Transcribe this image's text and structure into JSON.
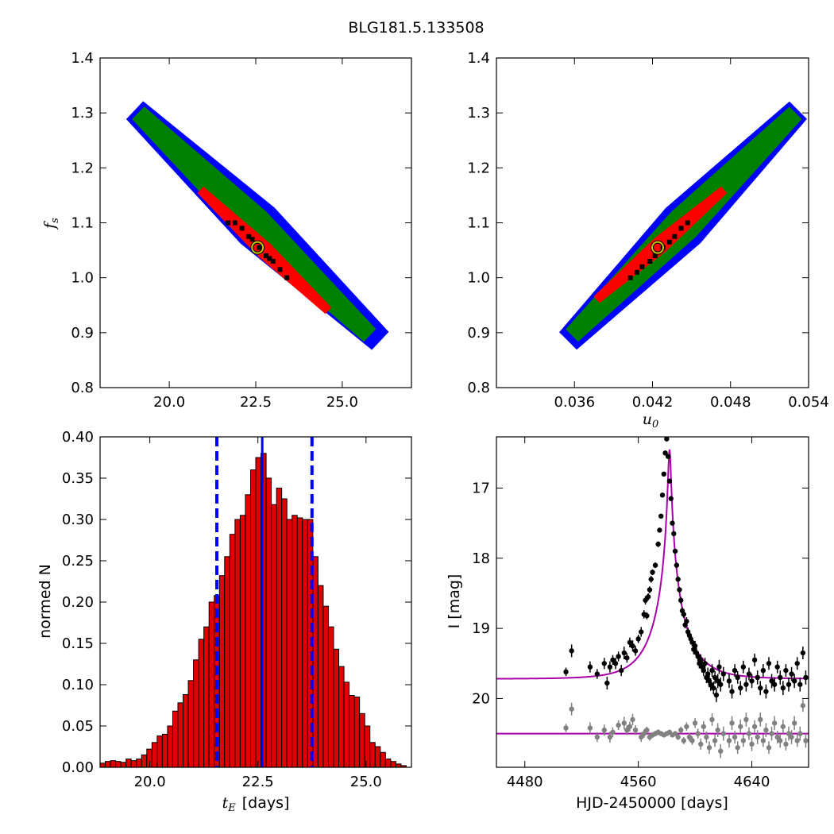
{
  "figure": {
    "suptitle": "BLG181.5.133508",
    "colors": {
      "outer_contour": "#0000ff",
      "mid_contour": "#008000",
      "inner_contour": "#ff0000",
      "core_points": "#000000",
      "best_fit_marker": "#c8c800",
      "histogram_bars": "#e00000",
      "median_line": "#0000ff",
      "model_curve": "#aa00aa",
      "data_points": "#000000",
      "residual_points": "#808080"
    }
  },
  "chart_data": [
    {
      "id": "tE_vs_fs",
      "type": "scatter",
      "xlabel": "",
      "ylabel": "f_s",
      "xlim": [
        18.0,
        27.0
      ],
      "ylim": [
        0.8,
        1.4
      ],
      "xticks": [
        "20.0",
        "22.5",
        "25.0"
      ],
      "xtick_values": [
        20.0,
        22.5,
        25.0
      ],
      "yticks": [
        "0.8",
        "0.9",
        "1.0",
        "1.1",
        "1.2",
        "1.3",
        "1.4"
      ],
      "ytick_values": [
        0.8,
        0.9,
        1.0,
        1.1,
        1.2,
        1.3,
        1.4
      ],
      "regions": {
        "outer": {
          "from": [
            19.0,
            1.305
          ],
          "to": [
            26.1,
            0.885
          ],
          "halfwidth": 0.045
        },
        "mid": {
          "from": [
            19.1,
            1.3
          ],
          "to": [
            25.8,
            0.895
          ],
          "halfwidth": 0.032
        },
        "inner": {
          "from": [
            20.9,
            1.16
          ],
          "to": [
            24.6,
            0.94
          ],
          "halfwidth": 0.016
        },
        "core": [
          [
            21.7,
            1.1
          ],
          [
            21.9,
            1.1
          ],
          [
            22.1,
            1.09
          ],
          [
            22.3,
            1.075
          ],
          [
            22.4,
            1.07
          ],
          [
            22.6,
            1.055
          ],
          [
            22.8,
            1.04
          ],
          [
            22.9,
            1.035
          ],
          [
            23.0,
            1.03
          ],
          [
            23.2,
            1.015
          ],
          [
            23.4,
            1.0
          ]
        ]
      },
      "best_fit": {
        "x": 22.55,
        "y": 1.055
      }
    },
    {
      "id": "u0_vs_fs",
      "type": "scatter",
      "xlabel": "u_0",
      "ylabel": "",
      "xlim": [
        0.03,
        0.054
      ],
      "ylim": [
        0.8,
        1.4
      ],
      "xticks": [
        "0.036",
        "0.042",
        "0.048",
        "0.054"
      ],
      "xtick_values": [
        0.036,
        0.042,
        0.048,
        0.054
      ],
      "yticks": [
        "0.8",
        "0.9",
        "1.0",
        "1.1",
        "1.2",
        "1.3",
        "1.4"
      ],
      "ytick_values": [
        0.8,
        0.9,
        1.0,
        1.1,
        1.2,
        1.3,
        1.4
      ],
      "regions": {
        "outer": {
          "from": [
            0.0355,
            0.885
          ],
          "to": [
            0.0532,
            1.305
          ],
          "halfwidth": 0.045
        },
        "mid": {
          "from": [
            0.0358,
            0.895
          ],
          "to": [
            0.053,
            1.3
          ],
          "halfwidth": 0.032
        },
        "inner": {
          "from": [
            0.0377,
            0.96
          ],
          "to": [
            0.0475,
            1.16
          ],
          "halfwidth": 0.016
        },
        "core": [
          [
            0.0403,
            1.0
          ],
          [
            0.0408,
            1.01
          ],
          [
            0.0412,
            1.02
          ],
          [
            0.0418,
            1.03
          ],
          [
            0.0422,
            1.04
          ],
          [
            0.0428,
            1.055
          ],
          [
            0.0433,
            1.065
          ],
          [
            0.0437,
            1.075
          ],
          [
            0.0442,
            1.09
          ],
          [
            0.0447,
            1.1
          ]
        ]
      },
      "best_fit": {
        "x": 0.0424,
        "y": 1.055
      }
    },
    {
      "id": "tE_histogram",
      "type": "bar",
      "xlabel_math": "t_E",
      "xlabel_text": "[days]",
      "ylabel": "normed N",
      "xlim": [
        18.85,
        26.05
      ],
      "ylim": [
        0.0,
        0.4
      ],
      "xticks": [
        "20.0",
        "22.5",
        "25.0"
      ],
      "xtick_values": [
        20.0,
        22.5,
        25.0
      ],
      "yticks": [
        "0.00",
        "0.05",
        "0.10",
        "0.15",
        "0.20",
        "0.25",
        "0.30",
        "0.35",
        "0.40"
      ],
      "ytick_values": [
        0.0,
        0.05,
        0.1,
        0.15,
        0.2,
        0.25,
        0.3,
        0.35,
        0.4
      ],
      "bin_start": 18.85,
      "bin_width": 0.12,
      "values": [
        0.005,
        0.007,
        0.008,
        0.007,
        0.006,
        0.01,
        0.008,
        0.01,
        0.015,
        0.022,
        0.03,
        0.038,
        0.04,
        0.05,
        0.068,
        0.078,
        0.088,
        0.105,
        0.13,
        0.155,
        0.17,
        0.2,
        0.208,
        0.232,
        0.255,
        0.282,
        0.3,
        0.305,
        0.33,
        0.36,
        0.375,
        0.38,
        0.35,
        0.318,
        0.338,
        0.325,
        0.3,
        0.305,
        0.302,
        0.3,
        0.3,
        0.255,
        0.22,
        0.195,
        0.17,
        0.143,
        0.122,
        0.103,
        0.087,
        0.085,
        0.065,
        0.05,
        0.03,
        0.025,
        0.018,
        0.01,
        0.007,
        0.004,
        0.002
      ],
      "median": 22.6,
      "lower": 21.55,
      "upper": 23.75
    },
    {
      "id": "light_curve",
      "type": "scatter",
      "xlabel": "HJD-2450000 [days]",
      "ylabel": "I [mag]",
      "xlim": [
        4460,
        4680
      ],
      "ylim": [
        20.98,
        16.27
      ],
      "ylim_note": "inverted magnitude axis",
      "xticks": [
        "4480",
        "4560",
        "4640"
      ],
      "xtick_values": [
        4480,
        4560,
        4640
      ],
      "yticks": [
        "17",
        "18",
        "19",
        "20"
      ],
      "ytick_values": [
        17,
        18,
        19,
        20
      ],
      "model": {
        "t0": 4582,
        "baseline": 19.72,
        "peak": 16.45,
        "tE": 22.6,
        "u0": 0.042
      },
      "residual_baseline": 20.5,
      "data": [
        [
          4509,
          19.62,
          0.06
        ],
        [
          4513,
          19.32,
          0.09
        ],
        [
          4526,
          19.55,
          0.08
        ],
        [
          4531,
          19.65,
          0.07
        ],
        [
          4536,
          19.5,
          0.08
        ],
        [
          4538,
          19.78,
          0.09
        ],
        [
          4540,
          19.55,
          0.08
        ],
        [
          4542,
          19.45,
          0.07
        ],
        [
          4544,
          19.5,
          0.08
        ],
        [
          4546,
          19.4,
          0.07
        ],
        [
          4548,
          19.6,
          0.08
        ],
        [
          4550,
          19.35,
          0.09
        ],
        [
          4552,
          19.42,
          0.07
        ],
        [
          4554,
          19.2,
          0.07
        ],
        [
          4556,
          19.25,
          0.08
        ],
        [
          4558,
          19.32,
          0.07
        ],
        [
          4560,
          19.15,
          0.06
        ],
        [
          4562,
          19.05,
          0.07
        ],
        [
          4564,
          18.8,
          0.06
        ],
        [
          4565,
          18.6,
          0.06
        ],
        [
          4566,
          18.82,
          0.05
        ],
        [
          4567,
          18.55,
          0.05
        ],
        [
          4568,
          18.45,
          0.05
        ],
        [
          4569,
          18.3,
          0.05
        ],
        [
          4570,
          18.2,
          0.04
        ],
        [
          4572,
          18.1,
          0.04
        ],
        [
          4574,
          17.8,
          0.04
        ],
        [
          4575,
          17.6,
          0.03
        ],
        [
          4576,
          17.4,
          0.03
        ],
        [
          4577,
          17.1,
          0.03
        ],
        [
          4578,
          16.8,
          0.02
        ],
        [
          4579,
          16.5,
          0.02
        ],
        [
          4580,
          16.3,
          0.02
        ],
        [
          4581,
          16.55,
          0.02
        ],
        [
          4582,
          16.9,
          0.02
        ],
        [
          4583,
          17.15,
          0.03
        ],
        [
          4584,
          17.5,
          0.03
        ],
        [
          4585,
          17.65,
          0.03
        ],
        [
          4586,
          17.9,
          0.03
        ],
        [
          4587,
          18.1,
          0.04
        ],
        [
          4588,
          18.3,
          0.04
        ],
        [
          4589,
          18.45,
          0.04
        ],
        [
          4590,
          18.6,
          0.05
        ],
        [
          4591,
          18.75,
          0.05
        ],
        [
          4592,
          18.8,
          0.05
        ],
        [
          4593,
          18.95,
          0.05
        ],
        [
          4594,
          18.9,
          0.06
        ],
        [
          4595,
          19.05,
          0.06
        ],
        [
          4596,
          19.1,
          0.06
        ],
        [
          4597,
          19.15,
          0.06
        ],
        [
          4598,
          19.2,
          0.06
        ],
        [
          4599,
          19.3,
          0.07
        ],
        [
          4600,
          19.25,
          0.07
        ],
        [
          4601,
          19.35,
          0.07
        ],
        [
          4602,
          19.4,
          0.07
        ],
        [
          4603,
          19.5,
          0.07
        ],
        [
          4604,
          19.45,
          0.08
        ],
        [
          4605,
          19.55,
          0.08
        ],
        [
          4606,
          19.6,
          0.08
        ],
        [
          4607,
          19.5,
          0.08
        ],
        [
          4608,
          19.7,
          0.08
        ],
        [
          4609,
          19.65,
          0.09
        ],
        [
          4610,
          19.75,
          0.09
        ],
        [
          4611,
          19.8,
          0.09
        ],
        [
          4612,
          19.6,
          0.09
        ],
        [
          4613,
          19.85,
          0.09
        ],
        [
          4614,
          19.7,
          0.09
        ],
        [
          4615,
          19.95,
          0.1
        ],
        [
          4616,
          19.75,
          0.1
        ],
        [
          4617,
          19.55,
          0.1
        ],
        [
          4618,
          19.8,
          0.1
        ],
        [
          4620,
          19.65,
          0.1
        ],
        [
          4624,
          19.75,
          0.1
        ],
        [
          4626,
          19.9,
          0.1
        ],
        [
          4628,
          19.6,
          0.09
        ],
        [
          4630,
          19.7,
          0.09
        ],
        [
          4632,
          19.85,
          0.1
        ],
        [
          4634,
          19.55,
          0.09
        ],
        [
          4636,
          19.8,
          0.1
        ],
        [
          4638,
          19.65,
          0.09
        ],
        [
          4640,
          19.75,
          0.1
        ],
        [
          4642,
          19.45,
          0.09
        ],
        [
          4644,
          19.7,
          0.1
        ],
        [
          4646,
          19.85,
          0.1
        ],
        [
          4648,
          19.6,
          0.09
        ],
        [
          4650,
          19.9,
          0.1
        ],
        [
          4652,
          19.5,
          0.09
        ],
        [
          4654,
          19.75,
          0.1
        ],
        [
          4656,
          19.8,
          0.1
        ],
        [
          4658,
          19.55,
          0.09
        ],
        [
          4660,
          19.7,
          0.1
        ],
        [
          4662,
          19.85,
          0.1
        ],
        [
          4664,
          19.6,
          0.09
        ],
        [
          4666,
          19.8,
          0.1
        ],
        [
          4668,
          19.65,
          0.1
        ],
        [
          4670,
          19.75,
          0.1
        ],
        [
          4672,
          19.5,
          0.09
        ],
        [
          4674,
          19.8,
          0.1
        ],
        [
          4676,
          19.35,
          0.09
        ],
        [
          4678,
          19.7,
          0.1
        ]
      ],
      "residuals": [
        [
          4509,
          20.42,
          0.06
        ],
        [
          4513,
          20.15,
          0.09
        ],
        [
          4526,
          20.42,
          0.08
        ],
        [
          4531,
          20.55,
          0.07
        ],
        [
          4536,
          20.45,
          0.08
        ],
        [
          4540,
          20.55,
          0.08
        ],
        [
          4542,
          20.48,
          0.07
        ],
        [
          4546,
          20.38,
          0.07
        ],
        [
          4550,
          20.35,
          0.09
        ],
        [
          4552,
          20.45,
          0.07
        ],
        [
          4554,
          20.4,
          0.07
        ],
        [
          4556,
          20.3,
          0.08
        ],
        [
          4558,
          20.45,
          0.07
        ],
        [
          4562,
          20.55,
          0.07
        ],
        [
          4564,
          20.5,
          0.06
        ],
        [
          4566,
          20.45,
          0.05
        ],
        [
          4568,
          20.55,
          0.05
        ],
        [
          4570,
          20.52,
          0.04
        ],
        [
          4572,
          20.5,
          0.04
        ],
        [
          4574,
          20.48,
          0.04
        ],
        [
          4576,
          20.5,
          0.03
        ],
        [
          4578,
          20.52,
          0.02
        ],
        [
          4580,
          20.5,
          0.02
        ],
        [
          4582,
          20.48,
          0.02
        ],
        [
          4584,
          20.52,
          0.03
        ],
        [
          4586,
          20.5,
          0.03
        ],
        [
          4588,
          20.55,
          0.04
        ],
        [
          4590,
          20.45,
          0.05
        ],
        [
          4592,
          20.6,
          0.05
        ],
        [
          4594,
          20.4,
          0.06
        ],
        [
          4596,
          20.55,
          0.06
        ],
        [
          4598,
          20.6,
          0.06
        ],
        [
          4600,
          20.35,
          0.07
        ],
        [
          4602,
          20.5,
          0.07
        ],
        [
          4604,
          20.65,
          0.08
        ],
        [
          4606,
          20.4,
          0.08
        ],
        [
          4608,
          20.55,
          0.08
        ],
        [
          4610,
          20.7,
          0.09
        ],
        [
          4612,
          20.3,
          0.09
        ],
        [
          4614,
          20.6,
          0.09
        ],
        [
          4616,
          20.45,
          0.1
        ],
        [
          4618,
          20.75,
          0.1
        ],
        [
          4620,
          20.5,
          0.1
        ],
        [
          4624,
          20.6,
          0.1
        ],
        [
          4626,
          20.35,
          0.1
        ],
        [
          4628,
          20.55,
          0.09
        ],
        [
          4630,
          20.7,
          0.09
        ],
        [
          4632,
          20.4,
          0.1
        ],
        [
          4634,
          20.6,
          0.09
        ],
        [
          4636,
          20.3,
          0.1
        ],
        [
          4638,
          20.5,
          0.09
        ],
        [
          4640,
          20.65,
          0.1
        ],
        [
          4642,
          20.4,
          0.09
        ],
        [
          4644,
          20.55,
          0.1
        ],
        [
          4646,
          20.3,
          0.1
        ],
        [
          4648,
          20.6,
          0.09
        ],
        [
          4650,
          20.45,
          0.1
        ],
        [
          4652,
          20.7,
          0.09
        ],
        [
          4654,
          20.5,
          0.1
        ],
        [
          4656,
          20.35,
          0.1
        ],
        [
          4658,
          20.55,
          0.09
        ],
        [
          4660,
          20.6,
          0.1
        ],
        [
          4662,
          20.4,
          0.1
        ],
        [
          4664,
          20.65,
          0.09
        ],
        [
          4666,
          20.5,
          0.1
        ],
        [
          4668,
          20.55,
          0.1
        ],
        [
          4670,
          20.35,
          0.1
        ],
        [
          4672,
          20.6,
          0.09
        ],
        [
          4674,
          20.5,
          0.1
        ],
        [
          4676,
          20.1,
          0.09
        ],
        [
          4678,
          20.6,
          0.1
        ]
      ]
    }
  ]
}
